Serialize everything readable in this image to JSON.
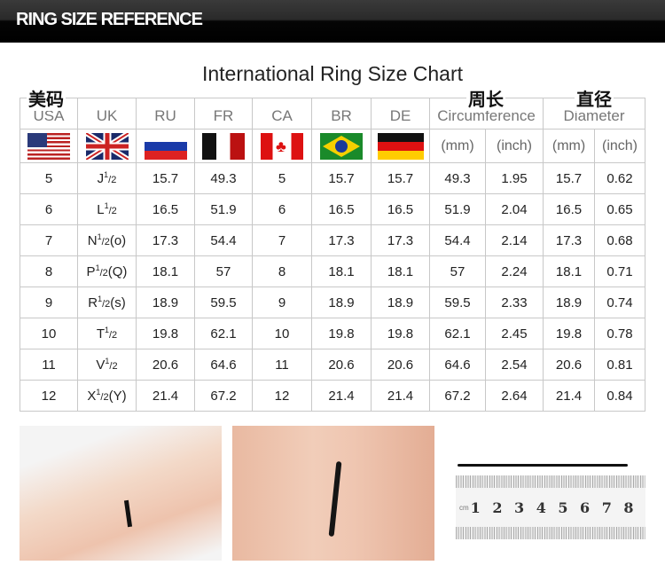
{
  "header": {
    "title": "RING SIZE REFERENCE"
  },
  "chart_title": "International Ring Size Chart",
  "cn_labels": {
    "usa": "美码",
    "circumference": "周长",
    "diameter": "直径"
  },
  "columns": [
    "USA",
    "UK",
    "RU",
    "FR",
    "CA",
    "BR",
    "DE",
    "Circumference",
    "Diameter"
  ],
  "units": [
    "(mm)",
    "(inch)",
    "(mm)",
    "(inch)"
  ],
  "flags": [
    "usa-flag",
    "uk-flag",
    "russia-flag",
    "france-flag",
    "canada-flag",
    "brazil-flag",
    "germany-flag"
  ],
  "rows": [
    {
      "usa": "5",
      "uk": "J",
      "uk_sup": "1",
      "uk_frac": "/2",
      "uk_alt": "",
      "ru": "15.7",
      "fr": "49.3",
      "ca": "5",
      "br": "15.7",
      "de": "15.7",
      "circ_mm": "49.3",
      "circ_in": "1.95",
      "dia_mm": "15.7",
      "dia_in": "0.62"
    },
    {
      "usa": "6",
      "uk": "L",
      "uk_sup": "1",
      "uk_frac": "/2",
      "uk_alt": "",
      "ru": "16.5",
      "fr": "51.9",
      "ca": "6",
      "br": "16.5",
      "de": "16.5",
      "circ_mm": "51.9",
      "circ_in": "2.04",
      "dia_mm": "16.5",
      "dia_in": "0.65"
    },
    {
      "usa": "7",
      "uk": "N",
      "uk_sup": "1",
      "uk_frac": "/2",
      "uk_alt": "(o)",
      "ru": "17.3",
      "fr": "54.4",
      "ca": "7",
      "br": "17.3",
      "de": "17.3",
      "circ_mm": "54.4",
      "circ_in": "2.14",
      "dia_mm": "17.3",
      "dia_in": "0.68"
    },
    {
      "usa": "8",
      "uk": "P",
      "uk_sup": "1",
      "uk_frac": "/2",
      "uk_alt": "(Q)",
      "ru": "18.1",
      "fr": "57",
      "ca": "8",
      "br": "18.1",
      "de": "18.1",
      "circ_mm": "57",
      "circ_in": "2.24",
      "dia_mm": "18.1",
      "dia_in": "0.71"
    },
    {
      "usa": "9",
      "uk": "R",
      "uk_sup": "1",
      "uk_frac": "/2",
      "uk_alt": "(s)",
      "ru": "18.9",
      "fr": "59.5",
      "ca": "9",
      "br": "18.9",
      "de": "18.9",
      "circ_mm": "59.5",
      "circ_in": "2.33",
      "dia_mm": "18.9",
      "dia_in": "0.74"
    },
    {
      "usa": "10",
      "uk": "T",
      "uk_sup": "1",
      "uk_frac": "/2",
      "uk_alt": "",
      "ru": "19.8",
      "fr": "62.1",
      "ca": "10",
      "br": "19.8",
      "de": "19.8",
      "circ_mm": "62.1",
      "circ_in": "2.45",
      "dia_mm": "19.8",
      "dia_in": "0.78"
    },
    {
      "usa": "11",
      "uk": "V",
      "uk_sup": "1",
      "uk_frac": "/2",
      "uk_alt": "",
      "ru": "20.6",
      "fr": "64.6",
      "ca": "11",
      "br": "20.6",
      "de": "20.6",
      "circ_mm": "64.6",
      "circ_in": "2.54",
      "dia_mm": "20.6",
      "dia_in": "0.81"
    },
    {
      "usa": "12",
      "uk": "X",
      "uk_sup": "1",
      "uk_frac": "/2",
      "uk_alt": "(Y)",
      "ru": "21.4",
      "fr": "67.2",
      "ca": "12",
      "br": "21.4",
      "de": "21.4",
      "circ_mm": "67.2",
      "circ_in": "2.64",
      "dia_mm": "21.4",
      "dia_in": "0.84"
    }
  ],
  "ruler": {
    "unit": "cm",
    "numbers": [
      "1",
      "2",
      "3",
      "4",
      "5",
      "6",
      "7",
      "8"
    ]
  }
}
